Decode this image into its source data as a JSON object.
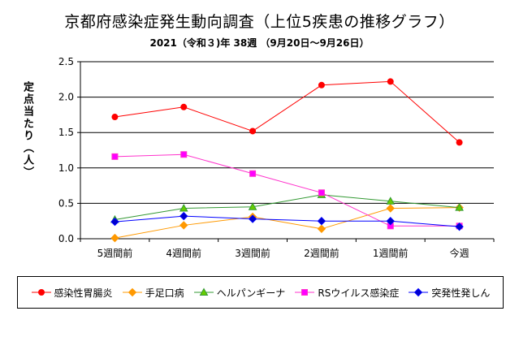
{
  "title": "京都府感染症発生動向調査（上位5疾患の推移グラフ）",
  "subtitle": "2021（令和３)年 38週 （9月20日～9月26日）",
  "chart_data": {
    "type": "line",
    "categories": [
      "5週間前",
      "4週間前",
      "3週間前",
      "2週間前",
      "1週間前",
      "今週"
    ],
    "ylabel": "定点当たり（人）",
    "xlabel": "",
    "ylim": [
      0.0,
      2.5
    ],
    "yticks": [
      "0.0",
      "0.5",
      "1.0",
      "1.5",
      "2.0",
      "2.5"
    ],
    "grid": true,
    "legend_position": "bottom",
    "series": [
      {
        "name": "感染性胃腸炎",
        "color": "#ff0000",
        "fill": "#ff0000",
        "marker": "circle",
        "values": [
          1.72,
          1.86,
          1.52,
          2.17,
          2.22,
          1.36
        ]
      },
      {
        "name": "手足口病",
        "color": "#ff9900",
        "fill": "#ff9900",
        "marker": "diamond",
        "values": [
          0.01,
          0.19,
          0.31,
          0.14,
          0.43,
          0.44
        ]
      },
      {
        "name": "ヘルパンギーナ",
        "color": "#339933",
        "fill": "#66cc00",
        "marker": "triangle",
        "values": [
          0.27,
          0.43,
          0.45,
          0.62,
          0.53,
          0.44
        ]
      },
      {
        "name": "RSウイルス感染症",
        "color": "#ff33cc",
        "fill": "#ff00ff",
        "marker": "square",
        "values": [
          1.16,
          1.19,
          0.92,
          0.65,
          0.18,
          0.18
        ]
      },
      {
        "name": "突発性発しん",
        "color": "#0000ff",
        "fill": "#0000cc",
        "marker": "diamond",
        "values": [
          0.24,
          0.32,
          0.28,
          0.25,
          0.25,
          0.17
        ]
      }
    ]
  }
}
